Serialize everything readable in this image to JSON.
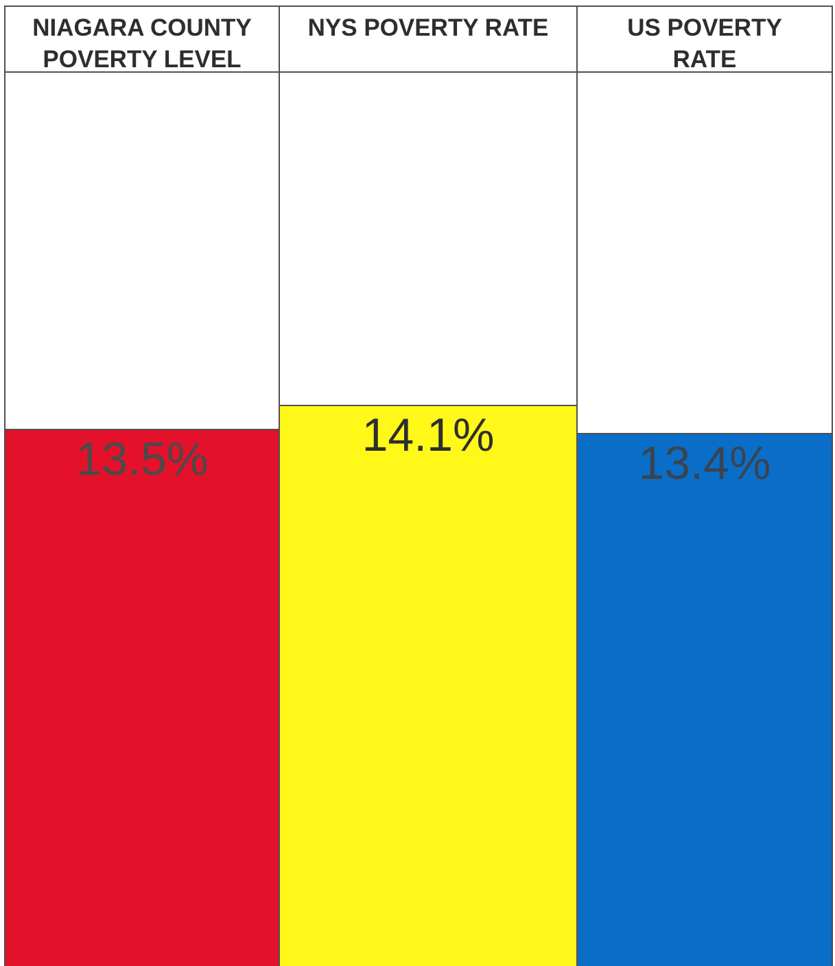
{
  "chart_data": {
    "type": "bar",
    "categories": [
      "NIAGARA COUNTY\nPOVERTY LEVEL",
      "NYS POVERTY RATE",
      "US POVERTY\nRATE"
    ],
    "values": [
      13.5,
      14.1,
      13.4
    ],
    "value_labels": [
      "13.5%",
      "14.1%",
      "13.4%"
    ],
    "colors": [
      "#e3122a",
      "#fff818",
      "#0a6ec8"
    ],
    "label_colors": [
      "#4a4a4a",
      "#2e2e2e",
      "#3a4450"
    ],
    "ylim": [
      0,
      22.5
    ],
    "title": "",
    "xlabel": "",
    "ylabel": "",
    "grid": false,
    "legend": false
  }
}
